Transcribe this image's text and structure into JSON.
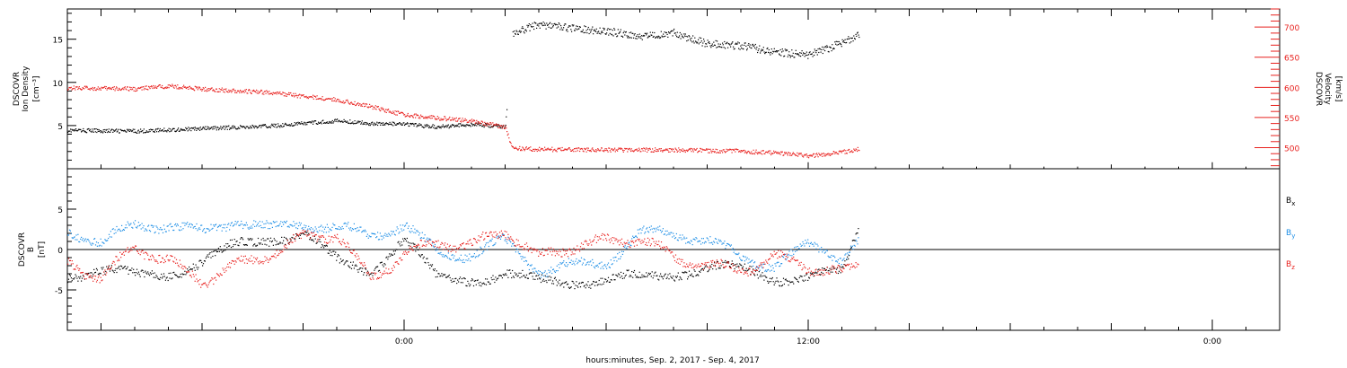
{
  "figure": {
    "xlabel": "hours:minutes, Sep. 2, 2017 - Sep. 4, 2017",
    "x_tick_labels": [
      "0:00",
      "12:00",
      "0:00"
    ],
    "colors": {
      "black": "#000000",
      "red": "#e8211e",
      "blue": "#1f8fe6"
    }
  },
  "chart_data": [
    {
      "type": "scatter",
      "panel": "top",
      "ylabel_left": [
        "DSCOVR",
        "Ion Density",
        "[cm⁻³]"
      ],
      "ylabel_right": [
        "DSCOVR",
        "Velocity",
        "[km/s]"
      ],
      "x_unit": "hours relative to Sep. 3, 2017 0:00",
      "xlim": [
        -10,
        26
      ],
      "ylim_left": [
        0,
        18.5
      ],
      "yticks_left": [
        5,
        10,
        15
      ],
      "ylim_right": [
        465,
        730
      ],
      "yticks_right": [
        500,
        550,
        600,
        650,
        700
      ],
      "data_gap_start": 13.7,
      "series": [
        {
          "axis": "left",
          "color": "#000000",
          "x": [
            -10,
            -8,
            -6,
            -4,
            -2,
            -1,
            0,
            1,
            2,
            3,
            3.2,
            4,
            5,
            6,
            7,
            8,
            9,
            10,
            11,
            12,
            13,
            13.5
          ],
          "y": [
            4.5,
            4.4,
            4.7,
            5.0,
            5.6,
            5.3,
            5.2,
            4.9,
            5.2,
            4.9,
            15.7,
            16.8,
            16.3,
            16.0,
            15.4,
            15.8,
            14.5,
            14.3,
            13.6,
            13.2,
            14.6,
            15.5
          ]
        },
        {
          "axis": "right",
          "color": "#e8211e",
          "x": [
            -10,
            -8,
            -7,
            -6,
            -4,
            -2,
            -1,
            0,
            1,
            2,
            3,
            3.2,
            4,
            6,
            8,
            9,
            10,
            11,
            12,
            13,
            13.5
          ],
          "y": [
            600,
            598,
            603,
            598,
            592,
            580,
            569,
            555,
            550,
            545,
            535,
            500,
            498,
            497,
            497,
            496,
            495,
            492,
            487,
            493,
            499
          ]
        }
      ]
    },
    {
      "type": "scatter",
      "panel": "bottom",
      "ylabel_left": [
        "DSCOVR",
        "B",
        "[nT]"
      ],
      "x_unit": "hours relative to Sep. 3, 2017 0:00",
      "xlim": [
        -10,
        26
      ],
      "ylim": [
        -10,
        10
      ],
      "yticks": [
        -5,
        0,
        5
      ],
      "zero_line": true,
      "legend": {
        "placement": "right",
        "entries": [
          "B_x",
          "B_y",
          "B_z"
        ]
      },
      "series": [
        {
          "name": "B_x",
          "color": "#000000",
          "x": [
            -10,
            -9,
            -8,
            -7,
            -6,
            -5,
            -4,
            -3,
            -2,
            -1,
            0,
            1,
            2,
            3,
            4,
            5,
            6,
            7,
            8,
            9,
            10,
            11,
            12,
            13,
            13.5
          ],
          "y": [
            -3.0,
            -2.5,
            -3.3,
            -2.8,
            -1.5,
            0.5,
            1.5,
            2.0,
            -1.5,
            -2.5,
            1.5,
            -3.8,
            -3.5,
            -3.0,
            -4.0,
            -3.8,
            -3.7,
            -3.5,
            -2.8,
            -2.2,
            -2.5,
            -3.4,
            -3.3,
            -3.0,
            2.8
          ]
        },
        {
          "name": "B_y",
          "color": "#1f8fe6",
          "x": [
            -10,
            -9,
            -8,
            -7,
            -6,
            -5,
            -4,
            -3,
            -2,
            -1,
            0,
            1,
            2,
            3,
            4,
            5,
            6,
            7,
            8,
            9,
            10,
            11,
            12,
            13,
            13.5
          ],
          "y": [
            2.5,
            1.0,
            3.0,
            3.2,
            2.0,
            3.8,
            2.5,
            3.5,
            2.5,
            2.0,
            3.0,
            -0.5,
            -0.5,
            1.0,
            -2.5,
            -2.0,
            -1.5,
            2.0,
            2.2,
            1.2,
            -1.0,
            -1.8,
            0.5,
            -0.8,
            1.5
          ]
        },
        {
          "name": "B_z",
          "color": "#e8211e",
          "x": [
            -10,
            -9,
            -8,
            -7,
            -6,
            -5,
            -4,
            -3,
            -2,
            -1,
            0,
            1,
            2,
            3,
            4,
            5,
            6,
            7,
            8,
            9,
            10,
            11,
            12,
            13,
            13.5
          ],
          "y": [
            -1.5,
            -3.5,
            0.5,
            -1.5,
            -3.8,
            -2.0,
            -0.5,
            1.5,
            2.0,
            -3.5,
            -0.5,
            1.0,
            0.5,
            2.5,
            -1.0,
            0.5,
            1.0,
            1.5,
            -1.0,
            -2.0,
            -2.5,
            -1.0,
            -2.0,
            -3.0,
            -1.8
          ]
        }
      ]
    }
  ]
}
